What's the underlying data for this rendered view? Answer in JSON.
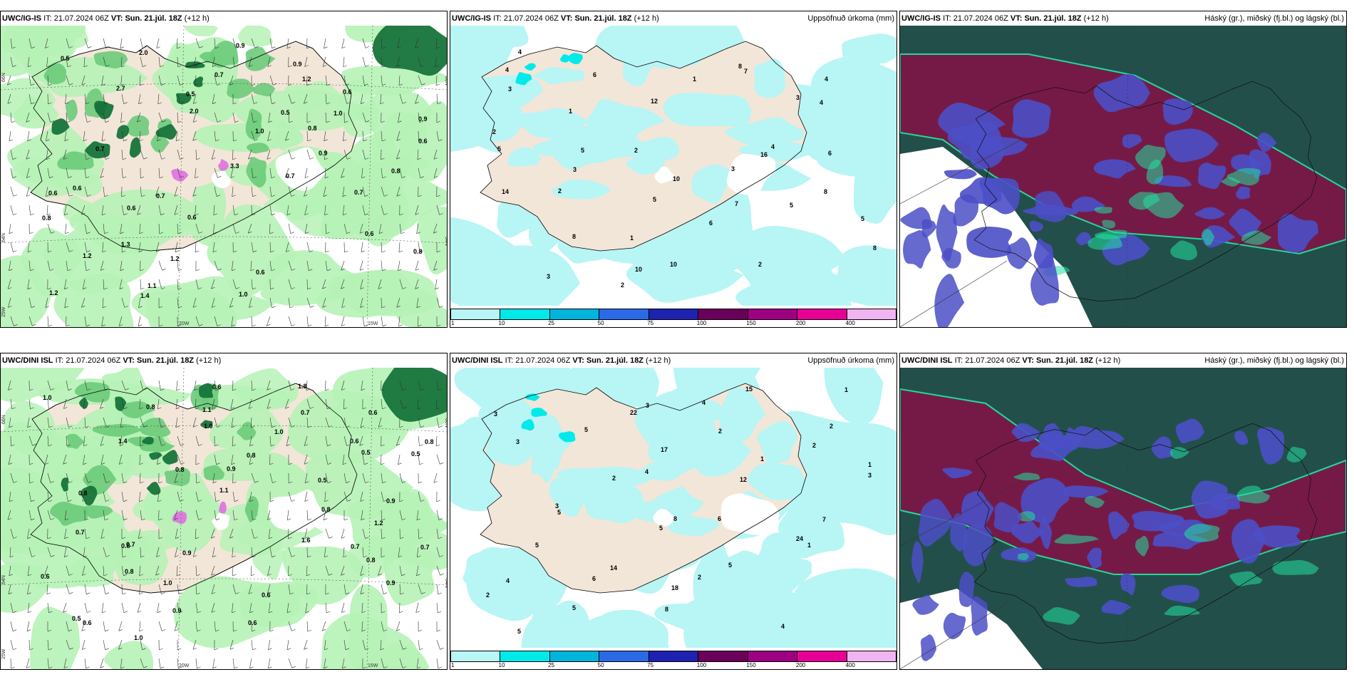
{
  "panels": [
    {
      "model": "UWC/IG-IS",
      "it_label": "IT:",
      "it": "21.07.2024 06Z",
      "vt_label": "VT:",
      "vt": "Sun. 21.júl. 18Z",
      "lead": "(+12 h)",
      "title_right": ""
    },
    {
      "model": "UWC/IG-IS",
      "it_label": "IT:",
      "it": "21.07.2024 06Z",
      "vt_label": "VT:",
      "vt": "Sun. 21.júl. 18Z",
      "lead": "(+12 h)",
      "title_right": "Uppsöfnuð úrkoma (mm)"
    },
    {
      "model": "UWC/IG-IS",
      "it_label": "IT:",
      "it": "21.07.2024 06Z",
      "vt_label": "VT:",
      "vt": "Sun. 21.júl. 18Z",
      "lead": "(+12 h)",
      "title_right": "Háský (gr.), miðský (fj.bl.) og lágský (bl.)"
    },
    {
      "model": "UWC/DINI ISL",
      "it_label": "IT:",
      "it": "21.07.2024 06Z",
      "vt_label": "VT:",
      "vt": "Sun. 21.júl. 18Z",
      "lead": "(+12 h)",
      "title_right": ""
    },
    {
      "model": "UWC/DINI ISL",
      "it_label": "IT:",
      "it": "21.07.2024 06Z",
      "vt_label": "VT:",
      "vt": "Sun. 21.júl. 18Z",
      "lead": "(+12 h)",
      "title_right": "Uppsöfnuð úrkoma (mm)"
    },
    {
      "model": "UWC/DINI ISL",
      "it_label": "IT:",
      "it": "21.07.2024 06Z",
      "vt_label": "VT:",
      "vt": "Sun. 21.júl. 18Z",
      "lead": "(+12 h)",
      "title_right": "Háský (gr.), miðský (fj.bl.) og lágský (bl.)"
    }
  ],
  "axis_labels": {
    "lat_66": "66N",
    "lat_64": "64N",
    "lon_25": "25W",
    "lon_20": "20W",
    "lon_15": "15W"
  },
  "colorbar": {
    "ticks": [
      "1",
      "10",
      "25",
      "50",
      "75",
      "100",
      "150",
      "200",
      "400"
    ],
    "colors": [
      "#b8f5f5",
      "#00eaea",
      "#00b4dc",
      "#2a6ae6",
      "#1e22b0",
      "#6a005a",
      "#9e0082",
      "#e60096",
      "#f0b4f0"
    ]
  },
  "map_colors": {
    "land": "#f2e6d8",
    "precip_light": "#b6f2b6",
    "precip_mid": "#6ccb7a",
    "precip_dark": "#16743a",
    "accum_light": "#b8f5f5",
    "accum_mid": "#00eaea",
    "high_cloud": "#234f4a",
    "mid_cloud": "#7a1846",
    "low_cloud": "#4b4fc6",
    "cloud_edge": "#22e0a0"
  },
  "wind_labels_top": [
    "0.5",
    "2.7",
    "2.0",
    "3.3",
    "0.7",
    "0.6",
    "0.8",
    "1.2",
    "2.0",
    "0.5",
    "1.0",
    "0.9",
    "0.7",
    "0.8",
    "1.2",
    "1.4",
    "0.7",
    "0.5",
    "0.8",
    "0.8",
    "0.6",
    "1.3",
    "1.1",
    "0.9",
    "1.2",
    "1.0",
    "0.6",
    "0.6",
    "0.6",
    "1.2",
    "1.0",
    "0.9",
    "0.6",
    "0.9",
    "0.7",
    "0.7",
    "0.6",
    "0.6"
  ],
  "wind_labels_bottom": [
    "1.0",
    "1.4",
    "0.8",
    "1.1",
    "1.6",
    "0.8",
    "0.9",
    "0.6",
    "0.8",
    "1.0",
    "0.9",
    "0.8",
    "0.7",
    "0.6",
    "0.5",
    "1.0",
    "1.1",
    "0.8",
    "0.5",
    "1.2",
    "0.7",
    "0.8",
    "0.9",
    "0.6",
    "1.0",
    "0.5",
    "0.9",
    "0.7",
    "0.8",
    "1.0",
    "0.6",
    "0.7",
    "0.6",
    "0.5",
    "0.8",
    "0.7",
    "0.9",
    "0.6",
    "1.8",
    "0.6",
    "0.8"
  ],
  "accum_labels_top": [
    "4",
    "1",
    "2",
    "3",
    "5",
    "8",
    "4",
    "6",
    "12",
    "16",
    "8",
    "5",
    "3",
    "2",
    "1",
    "4",
    "6",
    "14",
    "8",
    "10",
    "7",
    "3",
    "5",
    "2",
    "1",
    "10",
    "8",
    "4",
    "2",
    "3",
    "5",
    "6",
    "2",
    "4",
    "3",
    "5",
    "10",
    "7"
  ],
  "accum_labels_bottom": [
    "3",
    "5",
    "4",
    "6",
    "1",
    "2",
    "5",
    "22",
    "17",
    "12",
    "24",
    "4",
    "5",
    "3",
    "2",
    "1",
    "7",
    "5",
    "6",
    "8",
    "4",
    "2",
    "3",
    "5",
    "14",
    "18",
    "15",
    "2",
    "1",
    "3",
    "5",
    "2",
    "4",
    "1",
    "3",
    "2",
    "8",
    "5"
  ]
}
